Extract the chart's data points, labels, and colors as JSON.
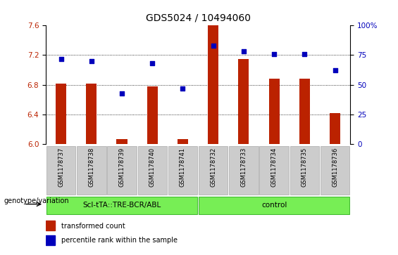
{
  "title": "GDS5024 / 10494060",
  "samples": [
    "GSM1178737",
    "GSM1178738",
    "GSM1178739",
    "GSM1178740",
    "GSM1178741",
    "GSM1178732",
    "GSM1178733",
    "GSM1178734",
    "GSM1178735",
    "GSM1178736"
  ],
  "transformed_count": [
    6.82,
    6.82,
    6.07,
    6.78,
    6.07,
    7.62,
    7.15,
    6.88,
    6.88,
    6.42
  ],
  "percentile_rank": [
    72,
    70,
    43,
    68,
    47,
    83,
    78,
    76,
    76,
    62
  ],
  "ylim_left": [
    6.0,
    7.6
  ],
  "ylim_right": [
    0,
    100
  ],
  "yticks_left": [
    6.0,
    6.4,
    6.8,
    7.2,
    7.6
  ],
  "yticks_right": [
    0,
    25,
    50,
    75,
    100
  ],
  "bar_color": "#bb2200",
  "dot_color": "#0000bb",
  "group1_label": "Scl-tTA::TRE-BCR/ABL",
  "group2_label": "control",
  "group1_indices": [
    0,
    1,
    2,
    3,
    4
  ],
  "group2_indices": [
    5,
    6,
    7,
    8,
    9
  ],
  "group_bg_color": "#77ee55",
  "group_edge_color": "#44bb33",
  "sample_bg_color": "#cccccc",
  "sample_edge_color": "#aaaaaa",
  "legend_bar_label": "transformed count",
  "legend_dot_label": "percentile rank within the sample",
  "left_label": "genotype/variation",
  "dotted_line_color": "#000000",
  "title_fontsize": 10,
  "tick_fontsize": 7.5,
  "sample_fontsize": 6,
  "group_fontsize": 7.5,
  "legend_fontsize": 7,
  "geno_fontsize": 7
}
